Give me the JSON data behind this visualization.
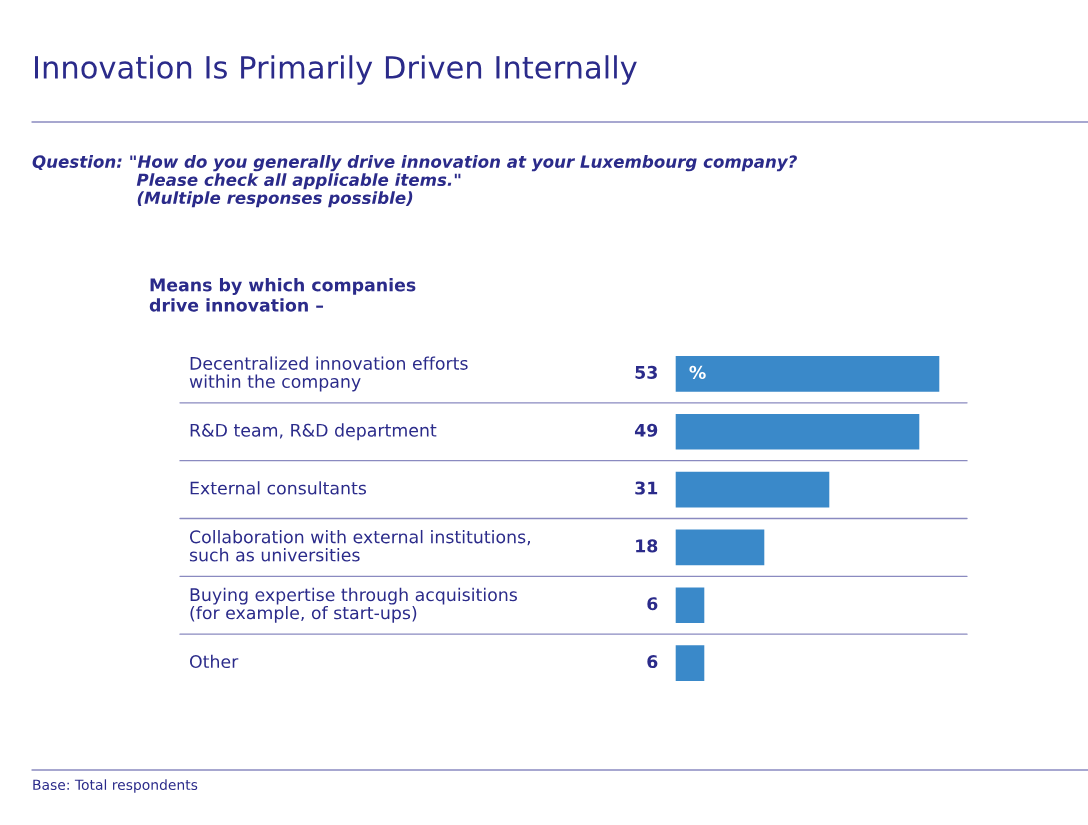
{
  "chart_data": {
    "type": "bar",
    "orientation": "horizontal",
    "title": "Innovation Is Primarily Driven Internally",
    "subtitle": "Question: \"How do you generally drive innovation at your Luxembourg company?\n                  Please check all applicable items.\"\n                  (Multiple responses possible)",
    "ylabel": "Means by which companies\ndrive innovation –",
    "categories": [
      "Decentralized innovation efforts\nwithin the company",
      "R&D team, R&D department",
      "External consultants",
      "Collaboration with external institutions,\nsuch as universities",
      "Buying expertise through acquisitions\n(for example, of start-ups)",
      "Other"
    ],
    "values": [
      53,
      49,
      31,
      18,
      6,
      6
    ],
    "color": "#3a89c9",
    "data_labels": true,
    "annotations": [
      "%",
      "Base: Total respondents"
    ],
    "grid": "y"
  }
}
